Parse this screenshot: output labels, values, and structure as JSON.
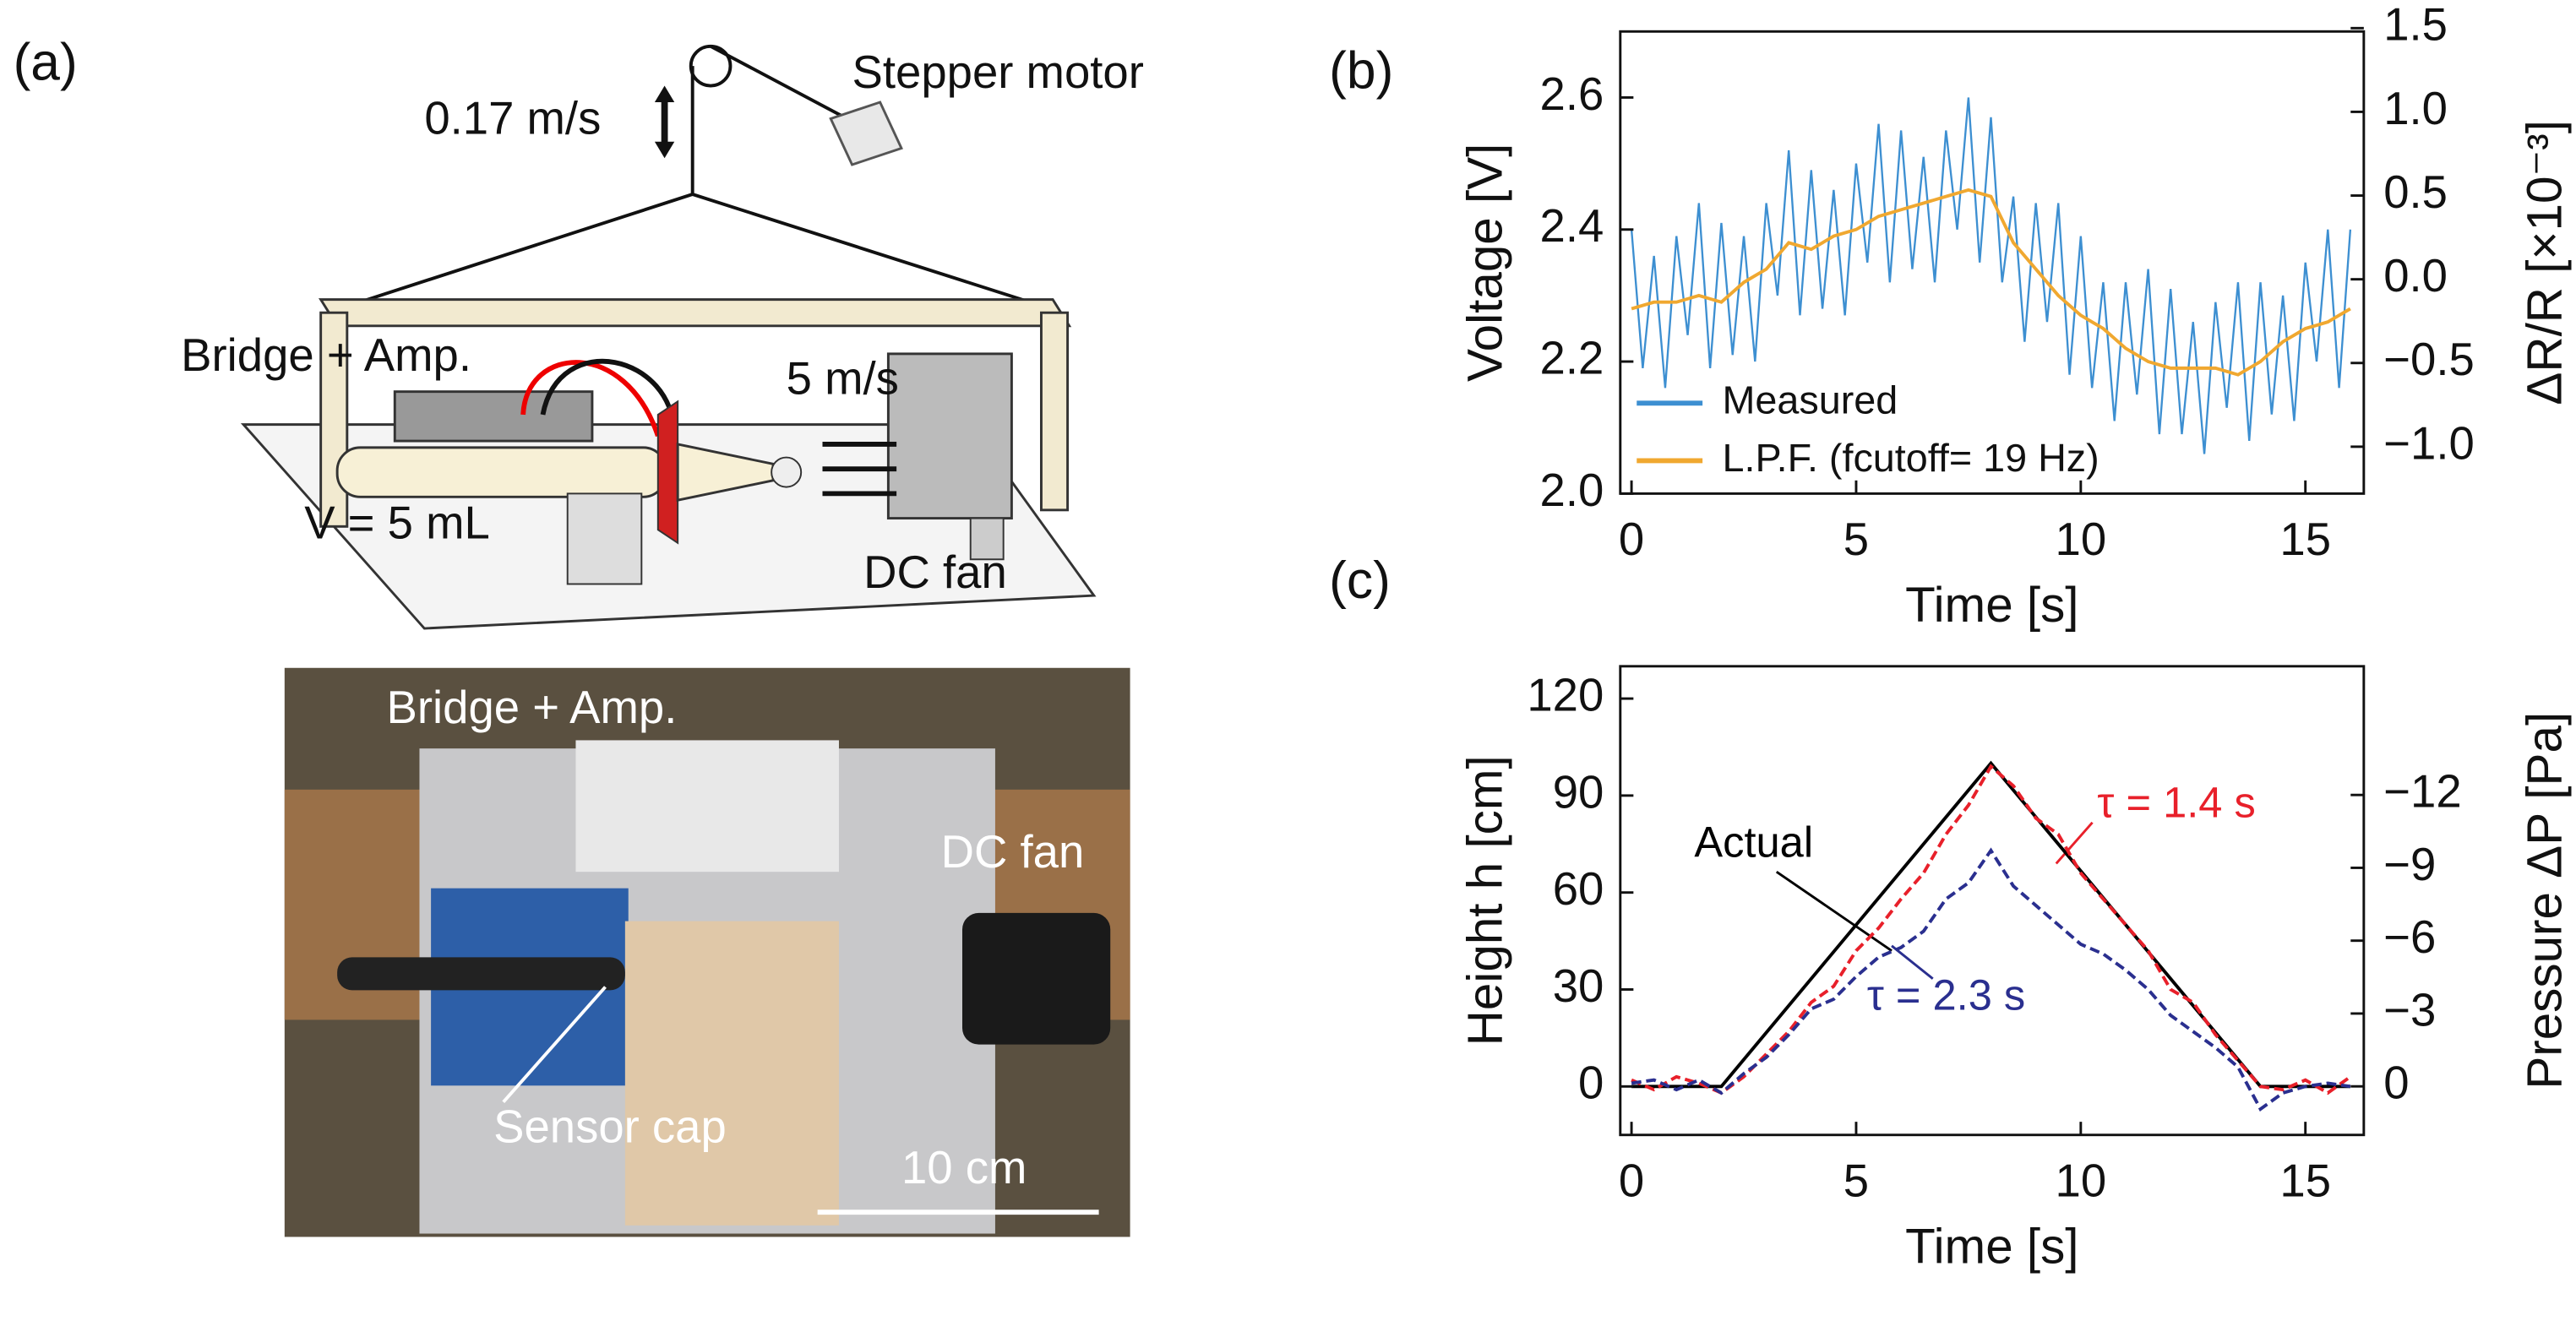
{
  "panel_a": {
    "label": "(a)",
    "diagram": {
      "speed": "0.17 m/s",
      "motor": "Stepper motor",
      "bridge": "Bridge + Amp.",
      "wind": "5 m/s",
      "volume": "V = 5 mL",
      "fan": "DC fan"
    },
    "photo": {
      "bridge": "Bridge + Amp.",
      "fan": "DC fan",
      "cap": "Sensor cap",
      "scale": "10 cm"
    }
  },
  "chart_data": [
    {
      "type": "line",
      "panel": "(b)",
      "xlabel": "Time [s]",
      "ylabel": "Voltage [V]",
      "y2label": "ΔR/R [×10⁻³]",
      "xlim": [
        -0.25,
        16.3
      ],
      "xticks": [
        0,
        5,
        10,
        15
      ],
      "ylim": [
        2.0,
        2.7
      ],
      "yticks": [
        {
          "value": 2,
          "label": "2.0"
        },
        2.2,
        2.4,
        2.6
      ],
      "y2lim": [
        -1.28,
        1.48
      ],
      "y2ticks": [
        {
          "value": -1,
          "label": "−1.0"
        },
        {
          "value": -0.5,
          "label": "−0.5"
        },
        {
          "value": 0,
          "label": "0.0"
        },
        0.5,
        {
          "value": 1,
          "label": "1.0"
        },
        1.5
      ],
      "legend": "lower left",
      "x": [
        0,
        0.25,
        0.5,
        0.75,
        1,
        1.25,
        1.5,
        1.75,
        2,
        2.25,
        2.5,
        2.75,
        3,
        3.25,
        3.5,
        3.75,
        4,
        4.25,
        4.5,
        4.75,
        5,
        5.25,
        5.5,
        5.75,
        6,
        6.25,
        6.5,
        6.75,
        7,
        7.25,
        7.5,
        7.75,
        8,
        8.25,
        8.5,
        8.75,
        9,
        9.25,
        9.5,
        9.75,
        10,
        10.25,
        10.5,
        10.75,
        11,
        11.25,
        11.5,
        11.75,
        12,
        12.25,
        12.5,
        12.75,
        13,
        13.25,
        13.5,
        13.75,
        14,
        14.25,
        14.5,
        14.75,
        15,
        15.25,
        15.5,
        15.75,
        16
      ],
      "series": [
        {
          "name": "Measured",
          "color": "#3d8fd1",
          "values": [
            2.4,
            2.19,
            2.36,
            2.16,
            2.39,
            2.24,
            2.44,
            2.19,
            2.41,
            2.21,
            2.39,
            2.2,
            2.44,
            2.3,
            2.52,
            2.27,
            2.49,
            2.28,
            2.46,
            2.27,
            2.5,
            2.35,
            2.56,
            2.32,
            2.55,
            2.34,
            2.51,
            2.32,
            2.55,
            2.4,
            2.6,
            2.35,
            2.57,
            2.32,
            2.45,
            2.23,
            2.44,
            2.26,
            2.44,
            2.18,
            2.39,
            2.16,
            2.32,
            2.11,
            2.32,
            2.15,
            2.34,
            2.09,
            2.31,
            2.09,
            2.26,
            2.06,
            2.29,
            2.13,
            2.32,
            2.08,
            2.32,
            2.12,
            2.3,
            2.11,
            2.35,
            2.2,
            2.4,
            2.16,
            2.4
          ]
        },
        {
          "name": "L.P.F. (fcutoff= 19 Hz)",
          "color": "#f0a830",
          "values": [
            2.28,
            2.285,
            2.29,
            2.29,
            2.29,
            2.295,
            2.3,
            2.295,
            2.29,
            2.305,
            2.32,
            2.33,
            2.34,
            2.36,
            2.38,
            2.375,
            2.37,
            2.38,
            2.39,
            2.395,
            2.4,
            2.41,
            2.42,
            2.425,
            2.43,
            2.435,
            2.44,
            2.445,
            2.45,
            2.455,
            2.46,
            2.455,
            2.45,
            2.415,
            2.38,
            2.36,
            2.34,
            2.32,
            2.3,
            2.285,
            2.27,
            2.26,
            2.25,
            2.235,
            2.22,
            2.21,
            2.2,
            2.195,
            2.19,
            2.19,
            2.19,
            2.19,
            2.19,
            2.185,
            2.18,
            2.19,
            2.2,
            2.215,
            2.23,
            2.24,
            2.25,
            2.255,
            2.26,
            2.27,
            2.28
          ]
        }
      ]
    },
    {
      "type": "line",
      "panel": "(c)",
      "xlabel": "Time [s]",
      "ylabel": "Height h [cm]",
      "y2label": "Pressure ΔP [Pa]",
      "xlim": [
        -0.25,
        16.3
      ],
      "xticks": [
        0,
        5,
        10,
        15
      ],
      "ylim": [
        -15,
        130
      ],
      "yticks": [
        0,
        30,
        60,
        90,
        120
      ],
      "y2lim": [
        2,
        -17.3
      ],
      "y2ticks": [
        0,
        {
          "value": -3,
          "label": "−3"
        },
        {
          "value": -6,
          "label": "−6"
        },
        {
          "value": -9,
          "label": "−9"
        },
        {
          "value": -12,
          "label": "−12"
        }
      ],
      "series": [
        {
          "name": "Actual",
          "color": "#000000",
          "x": [
            0,
            2,
            8,
            14,
            16
          ],
          "values": [
            0,
            0,
            100,
            0,
            0
          ]
        },
        {
          "name": "τ = 1.4 s",
          "color": "#e8202a",
          "dash": true,
          "x": [
            0,
            0.5,
            1,
            1.5,
            2,
            2.5,
            3,
            3.5,
            4,
            4.5,
            5,
            5.5,
            6,
            6.5,
            7,
            7.5,
            8,
            8.5,
            9,
            9.5,
            10,
            10.5,
            11,
            11.5,
            12,
            12.5,
            13,
            13.5,
            14,
            14.5,
            15,
            15.5,
            16
          ],
          "values": [
            2,
            -1,
            3,
            1,
            -2,
            3,
            10,
            17,
            26,
            31,
            42,
            49,
            58,
            66,
            78,
            87,
            99,
            93,
            83,
            78,
            66,
            58,
            50,
            42,
            30,
            26,
            16,
            8,
            0,
            -1,
            2,
            -2,
            3
          ]
        },
        {
          "name": "τ = 2.3 s",
          "color": "#2a2f8f",
          "dash": true,
          "x": [
            0,
            0.5,
            1,
            1.5,
            2,
            2.5,
            3,
            3.5,
            4,
            4.5,
            5,
            5.5,
            6,
            6.5,
            7,
            7.5,
            8,
            8.5,
            9,
            9.5,
            10,
            10.5,
            11,
            11.5,
            12,
            12.5,
            13,
            13.5,
            14,
            14.5,
            15,
            15.5,
            16
          ],
          "values": [
            1,
            2,
            -1,
            2,
            -2,
            4,
            9,
            16,
            24,
            27,
            34,
            40,
            43,
            48,
            58,
            63,
            73,
            62,
            56,
            50,
            44,
            41,
            36,
            30,
            22,
            17,
            12,
            6,
            -7,
            -2,
            0,
            1,
            0
          ]
        }
      ]
    }
  ]
}
